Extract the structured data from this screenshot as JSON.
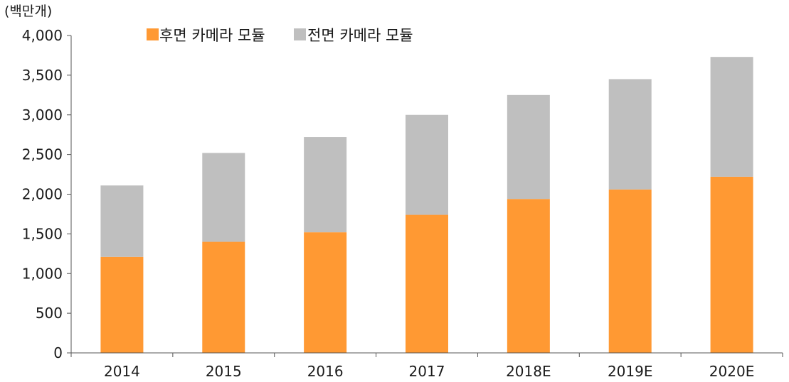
{
  "chart_data": {
    "type": "bar",
    "stacked": true,
    "unit_label": "(백만개)",
    "categories": [
      "2014",
      "2015",
      "2016",
      "2017",
      "2018E",
      "2019E",
      "2020E"
    ],
    "series": [
      {
        "name": "후면 카메라 모듈",
        "color": "#FF9933",
        "values": [
          1210,
          1400,
          1520,
          1740,
          1940,
          2060,
          2220
        ]
      },
      {
        "name": "전면 카메라 모듈",
        "color": "#BFBFBF",
        "values": [
          900,
          1120,
          1200,
          1260,
          1310,
          1390,
          1510
        ]
      }
    ],
    "ylim": [
      0,
      4000
    ],
    "yticks": [
      0,
      500,
      1000,
      1500,
      2000,
      2500,
      3000,
      3500,
      4000
    ],
    "ytick_labels": [
      "0",
      "500",
      "1,000",
      "1,500",
      "2,000",
      "2,500",
      "3,000",
      "3,500",
      "4,000"
    ],
    "grid": false,
    "legend_position": "top-center"
  }
}
